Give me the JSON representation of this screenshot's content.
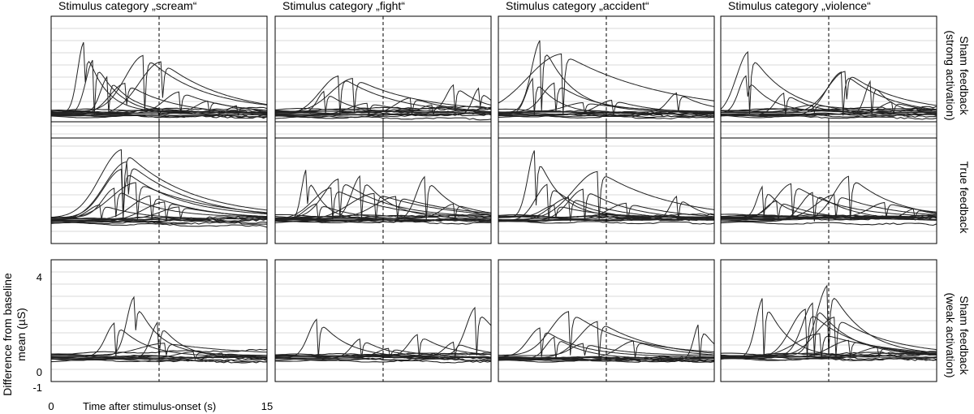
{
  "chart_data": {
    "type": "line",
    "layout": "4 columns x 3 rows of small multiples",
    "column_titles": [
      "Stimulus category „scream“",
      "Stimulus category „fight“",
      "Stimulus category „accident“",
      "Stimulus category „violence“"
    ],
    "row_labels": [
      [
        "Sham feedback",
        "(strong activation)"
      ],
      [
        "True feedback"
      ],
      [
        "Sham feedback",
        "(weak activation)"
      ]
    ],
    "ylabel": [
      "Difference from baseline",
      "mean (µS)"
    ],
    "xlabel": "Time after stimulus-onset  (s)",
    "xlim": [
      0,
      15
    ],
    "ylim": [
      -1,
      4
    ],
    "x_ticks": [
      "0",
      "15"
    ],
    "y_ticks": [
      "4",
      "0",
      "-1"
    ],
    "stimulus_onset_marker_x": 7.5,
    "horizontal_gridlines": true,
    "line_color": "#222222",
    "dashed_line_color": "#000000",
    "grid_color": "#d9d9d9",
    "panels": [
      {
        "row": 0,
        "col": 0,
        "series": [
          {
            "peak_t": 2.3,
            "amp": 2.9,
            "width": 1.0
          },
          {
            "peak_t": 3.0,
            "amp": 2.3,
            "width": 1.3
          },
          {
            "peak_t": 6.5,
            "amp": 2.3,
            "width": 3.0
          },
          {
            "peak_t": 7.7,
            "amp": 2.2,
            "width": 3.5
          },
          {
            "peak_t": 4.0,
            "amp": 1.5,
            "width": 1.2
          },
          {
            "peak_t": 5.2,
            "amp": 1.3,
            "width": 2.5
          },
          {
            "peak_t": 9.0,
            "amp": 0.9,
            "width": 2.5
          },
          {
            "peak_t": 11.0,
            "amp": 0.5,
            "width": 2.0
          },
          {
            "peak_t": 7.5,
            "amp": 0.3,
            "width": 4.0
          },
          {
            "peak_t": 13.0,
            "amp": 0.4,
            "width": 1.5
          }
        ]
      },
      {
        "row": 0,
        "col": 1,
        "series": [
          {
            "peak_t": 4.5,
            "amp": 1.6,
            "width": 3.0
          },
          {
            "peak_t": 5.5,
            "amp": 1.4,
            "width": 3.5
          },
          {
            "peak_t": 3.5,
            "amp": 0.9,
            "width": 1.2
          },
          {
            "peak_t": 12.5,
            "amp": 1.1,
            "width": 1.3
          },
          {
            "peak_t": 14.2,
            "amp": 1.1,
            "width": 1.0
          },
          {
            "peak_t": 9.5,
            "amp": 0.7,
            "width": 2.5
          },
          {
            "peak_t": 6.5,
            "amp": 0.5,
            "width": 3.0
          },
          {
            "peak_t": 11.0,
            "amp": 0.4,
            "width": 2.0
          }
        ]
      },
      {
        "row": 0,
        "col": 2,
        "series": [
          {
            "peak_t": 3.0,
            "amp": 3.0,
            "width": 1.5
          },
          {
            "peak_t": 4.5,
            "amp": 2.5,
            "width": 5.5
          },
          {
            "peak_t": 2.5,
            "amp": 1.5,
            "width": 1.2
          },
          {
            "peak_t": 4.0,
            "amp": 1.2,
            "width": 2.0
          },
          {
            "peak_t": 12.5,
            "amp": 0.8,
            "width": 1.5
          },
          {
            "peak_t": 8.0,
            "amp": 0.6,
            "width": 2.5
          },
          {
            "peak_t": 6.0,
            "amp": 0.4,
            "width": 3.0
          }
        ]
      },
      {
        "row": 0,
        "col": 3,
        "series": [
          {
            "peak_t": 2.0,
            "amp": 2.6,
            "width": 2.0
          },
          {
            "peak_t": 1.8,
            "amp": 1.5,
            "width": 1.2
          },
          {
            "peak_t": 8.5,
            "amp": 1.8,
            "width": 2.5
          },
          {
            "peak_t": 8.7,
            "amp": 1.7,
            "width": 2.8
          },
          {
            "peak_t": 10.5,
            "amp": 1.4,
            "width": 1.0
          },
          {
            "peak_t": 4.5,
            "amp": 0.9,
            "width": 1.5
          },
          {
            "peak_t": 12.0,
            "amp": 0.5,
            "width": 2.0
          },
          {
            "peak_t": 6.5,
            "amp": 0.3,
            "width": 3.0
          }
        ]
      },
      {
        "row": 1,
        "col": 0,
        "series": [
          {
            "peak_t": 5.0,
            "amp": 2.8,
            "width": 3.5
          },
          {
            "peak_t": 5.3,
            "amp": 2.4,
            "width": 3.5
          },
          {
            "peak_t": 5.0,
            "amp": 2.0,
            "width": 3.0
          },
          {
            "peak_t": 6.0,
            "amp": 1.5,
            "width": 4.0
          },
          {
            "peak_t": 4.5,
            "amp": 1.2,
            "width": 2.0
          },
          {
            "peak_t": 7.0,
            "amp": 1.0,
            "width": 3.0
          },
          {
            "peak_t": 8.0,
            "amp": 0.8,
            "width": 3.5
          },
          {
            "peak_t": 3.5,
            "amp": 0.6,
            "width": 2.0
          },
          {
            "peak_t": 9.0,
            "amp": 0.5,
            "width": 3.0
          }
        ]
      },
      {
        "row": 1,
        "col": 1,
        "series": [
          {
            "peak_t": 2.2,
            "amp": 2.1,
            "width": 0.8
          },
          {
            "peak_t": 4.5,
            "amp": 1.6,
            "width": 2.5
          },
          {
            "peak_t": 6.0,
            "amp": 1.8,
            "width": 1.5
          },
          {
            "peak_t": 10.5,
            "amp": 1.8,
            "width": 1.5
          },
          {
            "peak_t": 4.0,
            "amp": 1.3,
            "width": 3.0
          },
          {
            "peak_t": 7.0,
            "amp": 1.1,
            "width": 4.0
          },
          {
            "peak_t": 8.5,
            "amp": 0.9,
            "width": 3.5
          },
          {
            "peak_t": 3.0,
            "amp": 0.7,
            "width": 2.0
          },
          {
            "peak_t": 12.5,
            "amp": 0.6,
            "width": 2.0
          }
        ]
      },
      {
        "row": 1,
        "col": 2,
        "series": [
          {
            "peak_t": 2.6,
            "amp": 2.8,
            "width": 1.2
          },
          {
            "peak_t": 7.0,
            "amp": 2.0,
            "width": 4.0
          },
          {
            "peak_t": 3.5,
            "amp": 1.5,
            "width": 2.0
          },
          {
            "peak_t": 6.0,
            "amp": 1.3,
            "width": 2.5
          },
          {
            "peak_t": 5.0,
            "amp": 1.0,
            "width": 3.0
          },
          {
            "peak_t": 12.5,
            "amp": 1.0,
            "width": 1.2
          },
          {
            "peak_t": 9.0,
            "amp": 0.7,
            "width": 3.0
          },
          {
            "peak_t": 4.0,
            "amp": 0.5,
            "width": 2.0
          }
        ]
      },
      {
        "row": 1,
        "col": 3,
        "series": [
          {
            "peak_t": 9.0,
            "amp": 1.8,
            "width": 2.5
          },
          {
            "peak_t": 5.0,
            "amp": 1.4,
            "width": 2.5
          },
          {
            "peak_t": 3.0,
            "amp": 1.3,
            "width": 1.0
          },
          {
            "peak_t": 6.5,
            "amp": 1.2,
            "width": 2.0
          },
          {
            "peak_t": 8.0,
            "amp": 1.0,
            "width": 3.0
          },
          {
            "peak_t": 4.0,
            "amp": 0.8,
            "width": 2.0
          },
          {
            "peak_t": 11.5,
            "amp": 0.6,
            "width": 2.5
          },
          {
            "peak_t": 13.5,
            "amp": 0.4,
            "width": 1.5
          }
        ]
      },
      {
        "row": 2,
        "col": 0,
        "series": [
          {
            "peak_t": 5.8,
            "amp": 2.4,
            "width": 1.2
          },
          {
            "peak_t": 7.5,
            "amp": 1.5,
            "width": 1.2
          },
          {
            "peak_t": 4.5,
            "amp": 1.4,
            "width": 1.5
          },
          {
            "peak_t": 8.0,
            "amp": 0.5,
            "width": 4.0
          },
          {
            "peak_t": 10.0,
            "amp": 0.3,
            "width": 3.0
          },
          {
            "peak_t": 12.0,
            "amp": 0.2,
            "width": 2.0
          }
        ]
      },
      {
        "row": 2,
        "col": 1,
        "series": [
          {
            "peak_t": 3.0,
            "amp": 1.6,
            "width": 1.5
          },
          {
            "peak_t": 14.0,
            "amp": 2.0,
            "width": 1.6
          },
          {
            "peak_t": 6.0,
            "amp": 0.8,
            "width": 1.5
          },
          {
            "peak_t": 10.0,
            "amp": 0.9,
            "width": 1.5
          },
          {
            "peak_t": 12.5,
            "amp": 0.6,
            "width": 1.5
          },
          {
            "peak_t": 8.0,
            "amp": 0.4,
            "width": 2.0
          }
        ]
      },
      {
        "row": 2,
        "col": 2,
        "series": [
          {
            "peak_t": 5.0,
            "amp": 1.8,
            "width": 3.0
          },
          {
            "peak_t": 7.0,
            "amp": 1.5,
            "width": 3.0
          },
          {
            "peak_t": 14.0,
            "amp": 1.5,
            "width": 0.9
          },
          {
            "peak_t": 3.0,
            "amp": 1.2,
            "width": 2.0
          },
          {
            "peak_t": 4.0,
            "amp": 0.9,
            "width": 1.5
          },
          {
            "peak_t": 9.5,
            "amp": 0.7,
            "width": 2.5
          },
          {
            "peak_t": 6.0,
            "amp": 0.5,
            "width": 2.0
          }
        ]
      },
      {
        "row": 2,
        "col": 3,
        "series": [
          {
            "peak_t": 3.0,
            "amp": 2.5,
            "width": 1.2
          },
          {
            "peak_t": 7.5,
            "amp": 2.9,
            "width": 1.8
          },
          {
            "peak_t": 6.5,
            "amp": 2.2,
            "width": 1.8
          },
          {
            "peak_t": 6.0,
            "amp": 2.0,
            "width": 2.5
          },
          {
            "peak_t": 8.0,
            "amp": 1.6,
            "width": 3.0
          },
          {
            "peak_t": 7.0,
            "amp": 1.0,
            "width": 4.0
          },
          {
            "peak_t": 9.0,
            "amp": 0.7,
            "width": 3.0
          },
          {
            "peak_t": 11.0,
            "amp": 0.4,
            "width": 2.5
          }
        ]
      }
    ]
  }
}
